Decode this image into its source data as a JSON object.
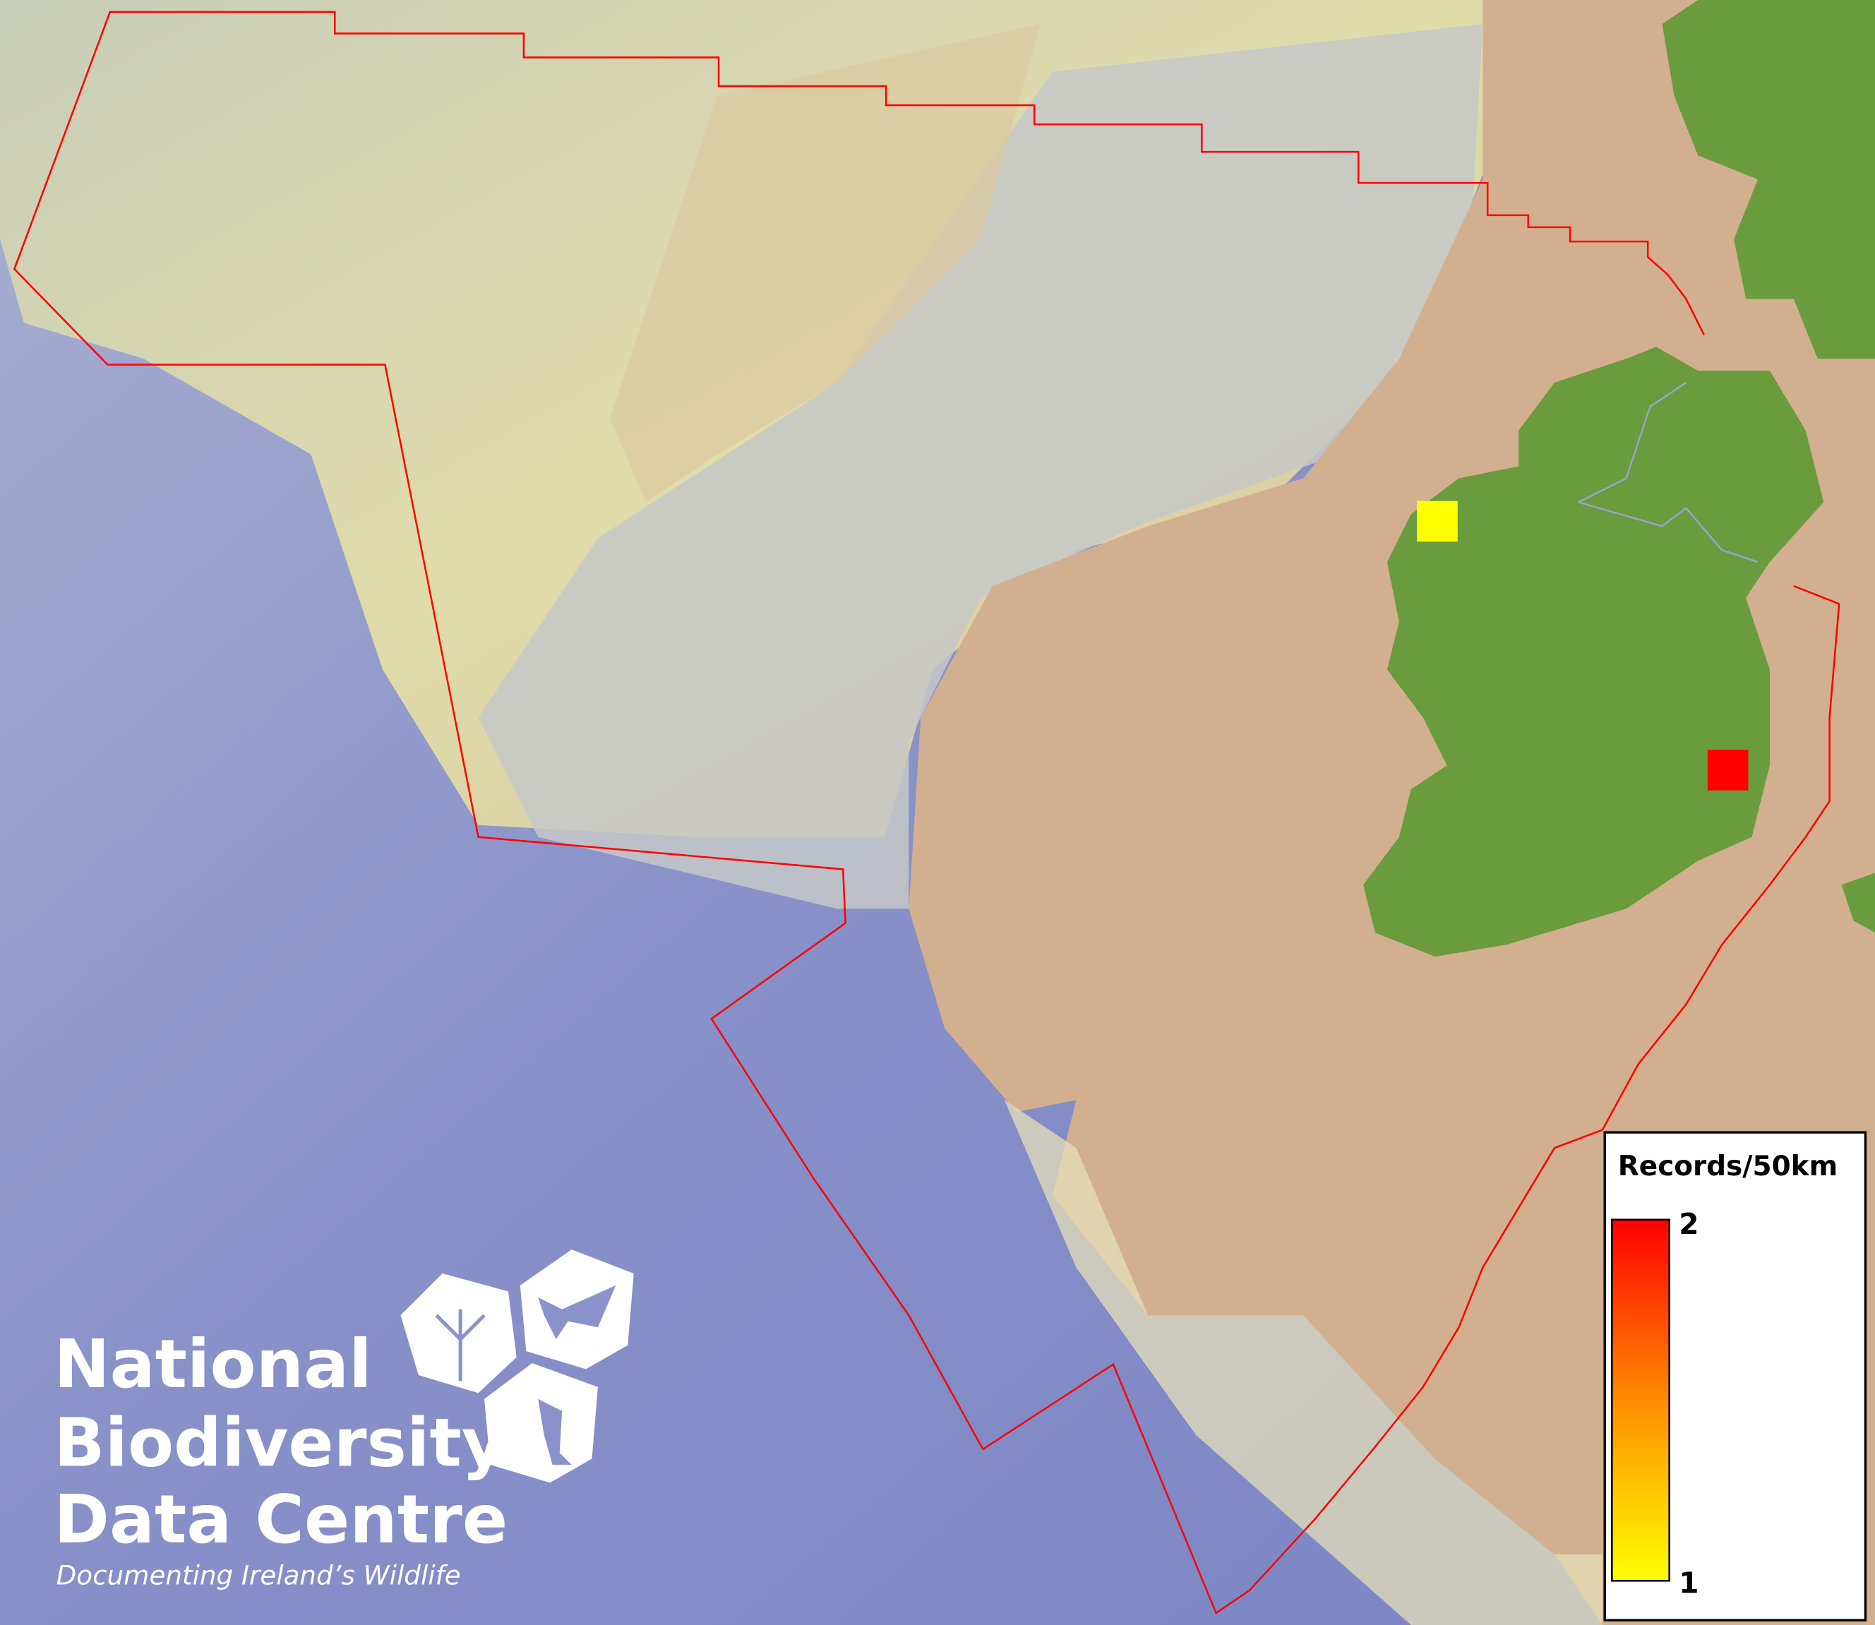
{
  "map": {
    "colors": {
      "deep_ocean": "#7f89c6",
      "slope": "#c9cbc6",
      "shelf": "#d3b08e",
      "plateau": "#dcd9ae",
      "land": "#6a9b3d",
      "boundary": "#ff0000"
    },
    "records": [
      {
        "location": "north-west Ireland",
        "value": 1,
        "color": "#ffff00"
      },
      {
        "location": "east Ireland",
        "value": 2,
        "color": "#ff0000"
      }
    ]
  },
  "legend": {
    "title": "Records/50km",
    "max_label": "2",
    "min_label": "1",
    "gradient": [
      "#ffff00",
      "#ff8c00",
      "#ff0000"
    ]
  },
  "logo": {
    "line1": "National",
    "line2": "Biodiversity",
    "line3": "Data Centre",
    "tagline": "Documenting Ireland’s Wildlife",
    "icons": [
      "tree-icon",
      "butterfly-icon",
      "seahorse-icon"
    ]
  }
}
